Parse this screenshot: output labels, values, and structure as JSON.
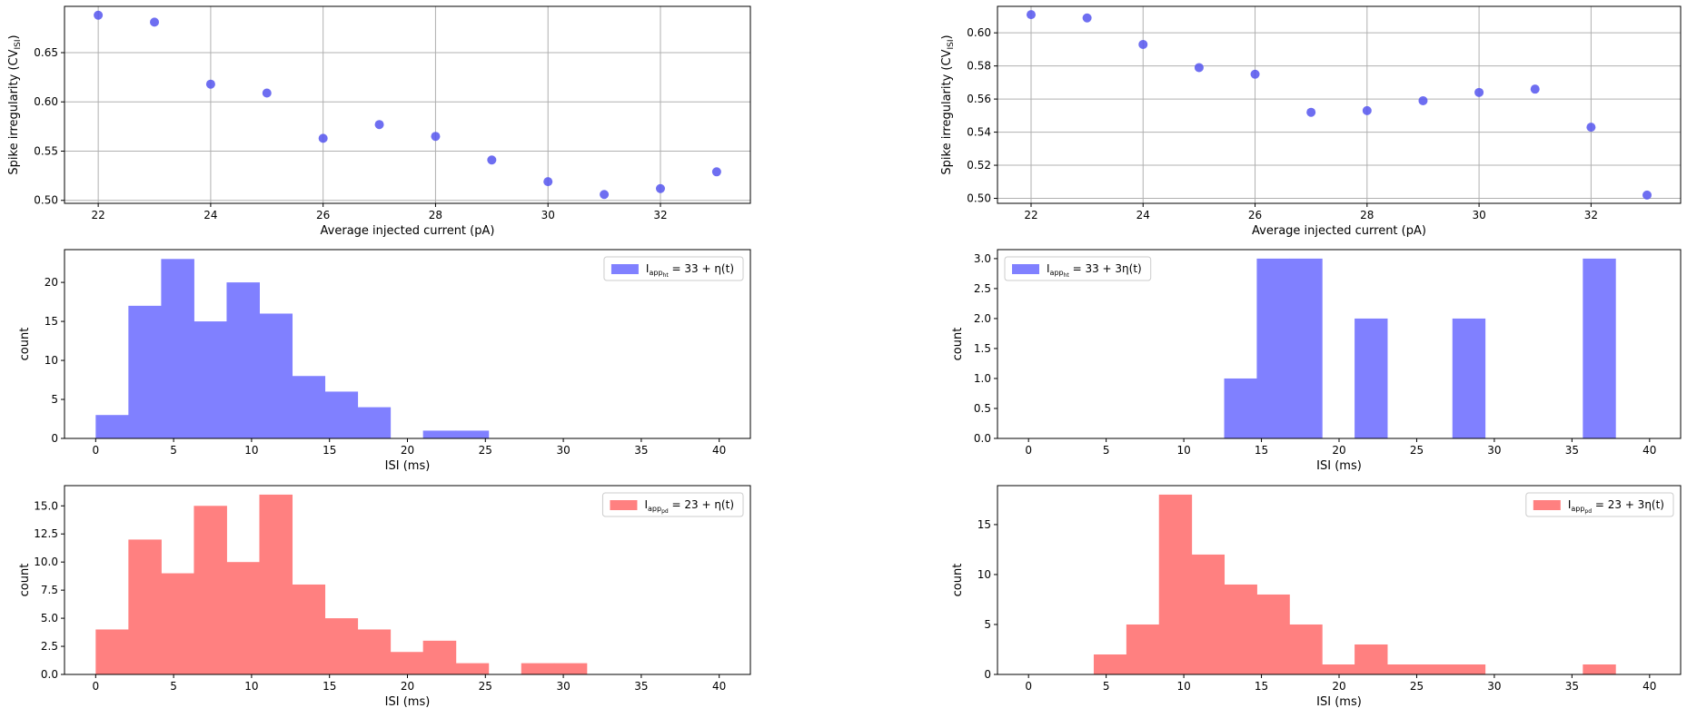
{
  "chart_data": [
    {
      "id": "cv-ht",
      "type": "scatter",
      "xlabel": "Average injected current (pA)",
      "ylabel": "Spike irregularity (CV",
      "ylabel_sub": "ISI",
      "ylabel_close": ")",
      "x": [
        22,
        23,
        24,
        25,
        26,
        27,
        28,
        29,
        30,
        31,
        32,
        33
      ],
      "y": [
        0.688,
        0.681,
        0.618,
        0.609,
        0.563,
        0.577,
        0.565,
        0.541,
        0.519,
        0.506,
        0.512,
        0.529
      ],
      "xlim": [
        21.4,
        33.6
      ],
      "ylim": [
        0.497,
        0.697
      ],
      "xticks": [
        22,
        24,
        26,
        28,
        30,
        32
      ],
      "yticks": [
        0.5,
        0.55,
        0.6,
        0.65
      ],
      "ytick_decimals": 2,
      "grid": true,
      "color": "#5555ee"
    },
    {
      "id": "cv-pd",
      "type": "scatter",
      "xlabel": "Average injected current (pA)",
      "ylabel": "Spike irregularity (CV",
      "ylabel_sub": "ISI",
      "ylabel_close": ")",
      "x": [
        22,
        23,
        24,
        25,
        26,
        27,
        28,
        29,
        30,
        31,
        32,
        33
      ],
      "y": [
        0.611,
        0.609,
        0.593,
        0.579,
        0.575,
        0.552,
        0.553,
        0.559,
        0.564,
        0.566,
        0.543,
        0.502
      ],
      "xlim": [
        21.4,
        33.6
      ],
      "ylim": [
        0.497,
        0.616
      ],
      "xticks": [
        22,
        24,
        26,
        28,
        30,
        32
      ],
      "yticks": [
        0.5,
        0.52,
        0.54,
        0.56,
        0.58,
        0.6
      ],
      "ytick_decimals": 2,
      "grid": true,
      "color": "#5555ee"
    },
    {
      "id": "hist-ht-1",
      "type": "bar",
      "xlabel": "ISI (ms)",
      "ylabel": "count",
      "bin_edges": [
        0,
        2.1,
        4.2,
        6.3,
        8.4,
        10.5,
        12.6,
        14.7,
        16.8,
        18.9,
        21.0,
        23.1,
        25.2
      ],
      "values": [
        3,
        17,
        23,
        15,
        20,
        16,
        8,
        6,
        4,
        0,
        1,
        1
      ],
      "xlim": [
        -2.0,
        42.0
      ],
      "ylim": [
        0,
        24.2
      ],
      "xticks": [
        0,
        5,
        10,
        15,
        20,
        25,
        30,
        35,
        40
      ],
      "yticks": [
        0,
        5,
        10,
        15,
        20
      ],
      "ytick_decimals": 0,
      "color": "#8080ff",
      "legend": {
        "main": "I",
        "sub": "app",
        "subsub": "ht",
        "expr": " = 33 + η(t)",
        "position": "top-right"
      }
    },
    {
      "id": "hist-ht-3",
      "type": "bar",
      "xlabel": "ISI (ms)",
      "ylabel": "count",
      "bin_edges": [
        0,
        2.1,
        4.2,
        6.3,
        8.4,
        10.5,
        12.6,
        14.7,
        16.8,
        18.9,
        21.0,
        23.1,
        25.2,
        27.3,
        29.4,
        31.5,
        33.6,
        35.7,
        37.8
      ],
      "values": [
        0,
        0,
        0,
        0,
        0,
        0,
        1,
        3,
        3,
        0,
        2,
        0,
        0,
        2,
        0,
        0,
        0,
        3
      ],
      "xlim": [
        -2.0,
        42.0
      ],
      "ylim": [
        0,
        3.15
      ],
      "xticks": [
        0,
        5,
        10,
        15,
        20,
        25,
        30,
        35,
        40
      ],
      "yticks": [
        0,
        0.5,
        1,
        1.5,
        2,
        2.5,
        3
      ],
      "ytick_decimals": 1,
      "color": "#8080ff",
      "legend": {
        "main": "I",
        "sub": "app",
        "subsub": "ht",
        "expr": " = 33 + 3η(t)",
        "position": "top-left"
      }
    },
    {
      "id": "hist-pd-1",
      "type": "bar",
      "xlabel": "ISI (ms)",
      "ylabel": "count",
      "bin_edges": [
        0,
        2.1,
        4.2,
        6.3,
        8.4,
        10.5,
        12.6,
        14.7,
        16.8,
        18.9,
        21.0,
        23.1,
        25.2,
        27.3,
        29.4,
        31.5
      ],
      "values": [
        4,
        12,
        9,
        15,
        10,
        16,
        8,
        5,
        4,
        2,
        3,
        1,
        0,
        1,
        1
      ],
      "xlim": [
        -2.0,
        42.0
      ],
      "ylim": [
        0,
        16.8
      ],
      "xticks": [
        0,
        5,
        10,
        15,
        20,
        25,
        30,
        35,
        40
      ],
      "yticks": [
        0,
        2.5,
        5,
        7.5,
        10,
        12.5,
        15
      ],
      "ytick_decimals": 1,
      "color": "#ff8080",
      "legend": {
        "main": "I",
        "sub": "app",
        "subsub": "pd",
        "expr": " = 23 + η(t)",
        "position": "top-right"
      }
    },
    {
      "id": "hist-pd-3",
      "type": "bar",
      "xlabel": "ISI (ms)",
      "ylabel": "count",
      "bin_edges": [
        0,
        2.1,
        4.2,
        6.3,
        8.4,
        10.5,
        12.6,
        14.7,
        16.8,
        18.9,
        21.0,
        23.1,
        25.2,
        27.3,
        29.4,
        31.5,
        33.6,
        35.7,
        37.8
      ],
      "values": [
        0,
        0,
        2,
        5,
        18,
        12,
        9,
        8,
        5,
        1,
        3,
        1,
        1,
        1,
        0,
        0,
        0,
        1
      ],
      "xlim": [
        -2.0,
        42.0
      ],
      "ylim": [
        0,
        18.9
      ],
      "xticks": [
        0,
        5,
        10,
        15,
        20,
        25,
        30,
        35,
        40
      ],
      "yticks": [
        0,
        5,
        10,
        15
      ],
      "ytick_decimals": 0,
      "color": "#ff8080",
      "legend": {
        "main": "I",
        "sub": "app",
        "subsub": "pd",
        "expr": " = 23 + 3η(t)",
        "position": "top-right"
      }
    }
  ]
}
